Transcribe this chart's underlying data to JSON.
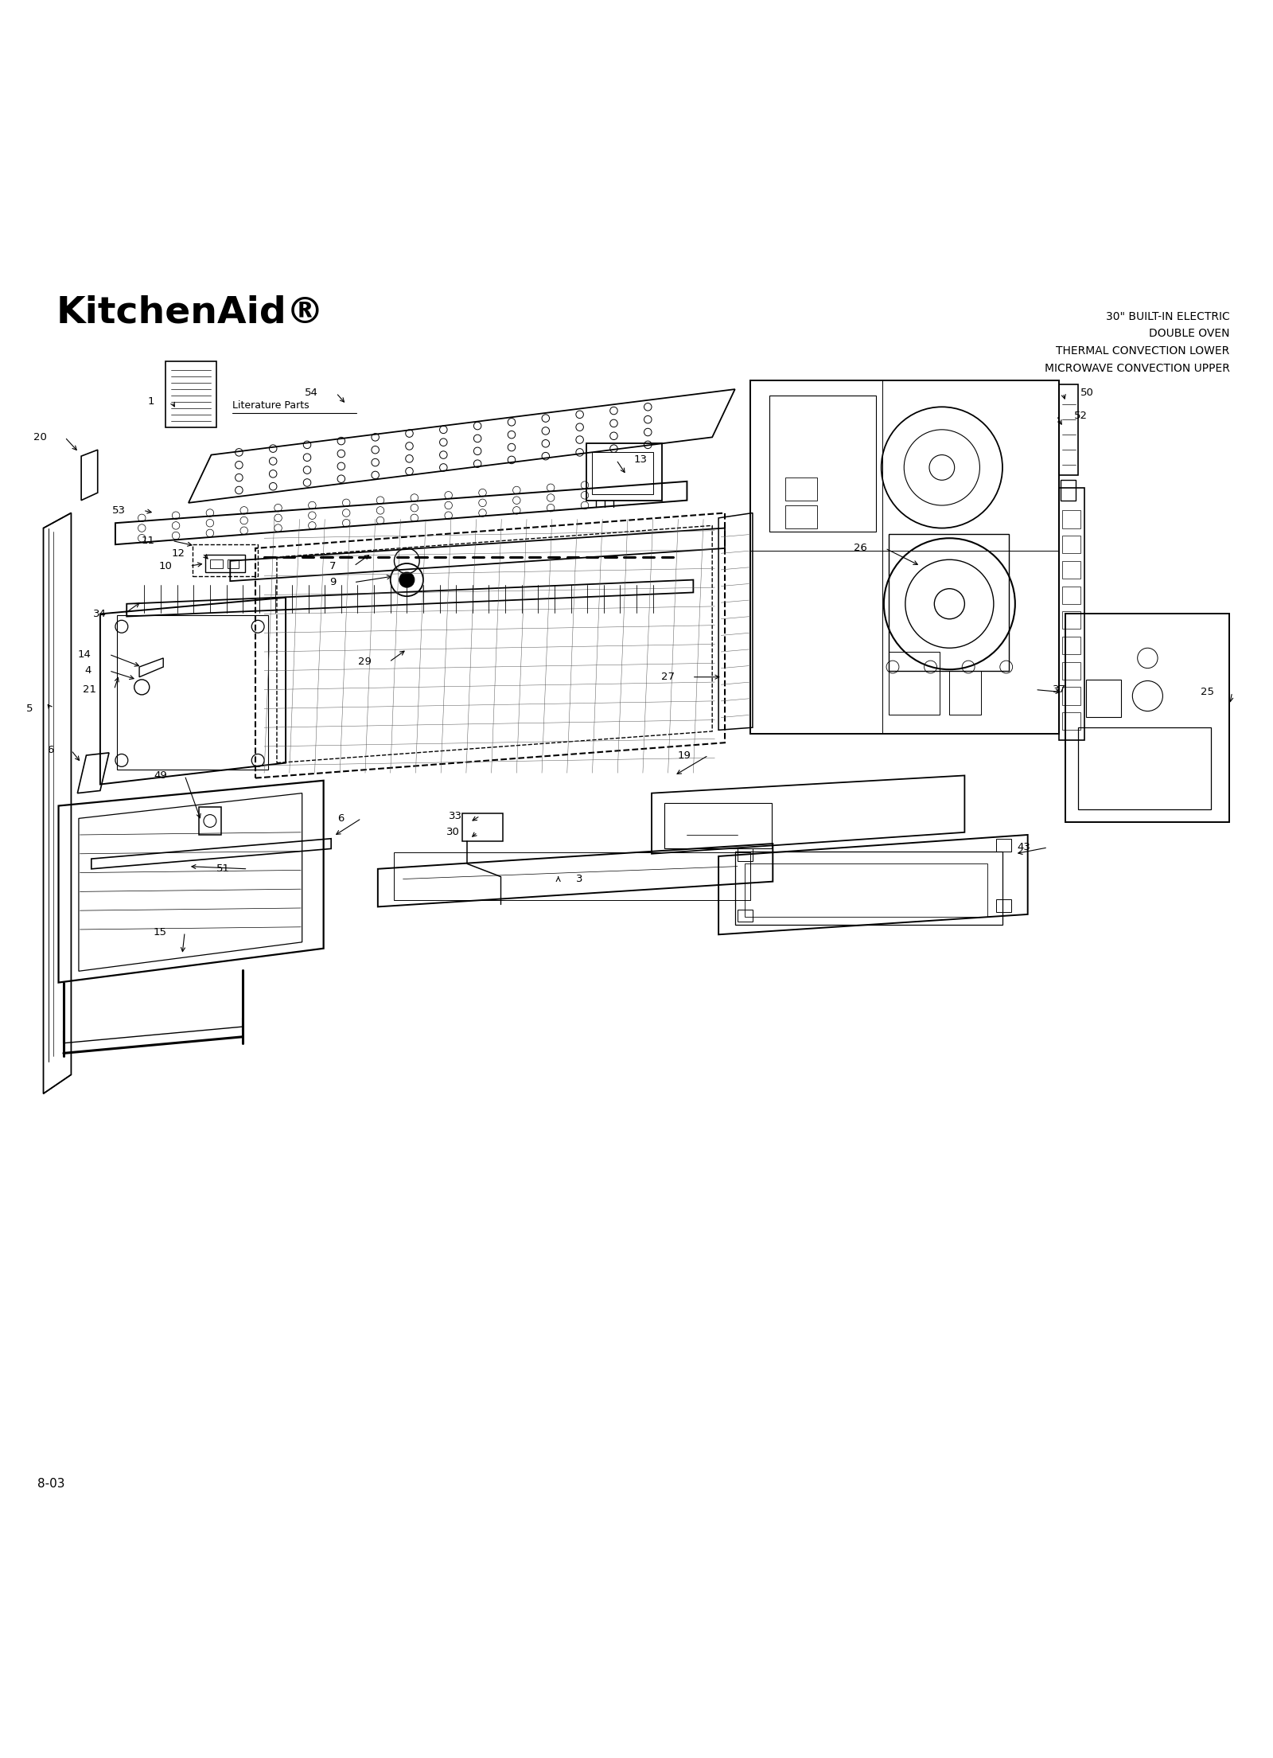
{
  "bg_color": "#ffffff",
  "title_text": "KitchenAid®",
  "subtitle_text": "30\" BUILT-IN ELECTRIC\nDOUBLE OVEN\nTHERMAL CONVECTION LOWER\nMICROWAVE CONVECTION UPPER",
  "footer_text": "8-03",
  "lit_parts_text": "Literature Parts",
  "fig_width": 16.0,
  "fig_height": 22.09
}
